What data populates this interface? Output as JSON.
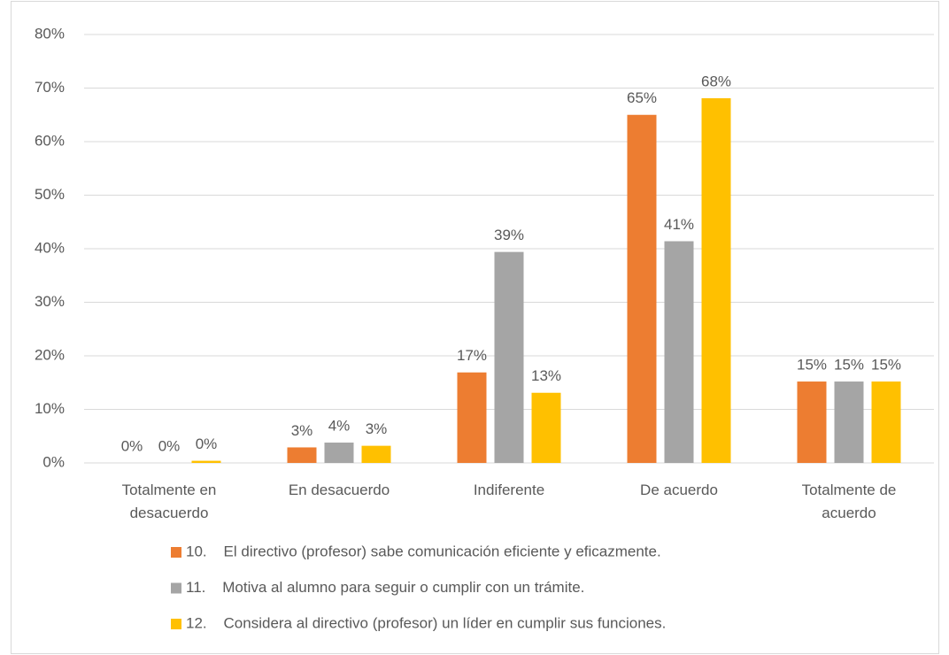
{
  "chart_data": {
    "type": "bar",
    "categories": [
      "Totalmente en desacuerdo",
      "En desacuerdo",
      "Indiferente",
      "De acuerdo",
      "Totalmente de acuerdo"
    ],
    "series": [
      {
        "name": "10.    El directivo (profesor) sabe comunicación eficiente y eficazmente.",
        "color": "#ed7d31",
        "values": [
          0,
          2.9,
          16.9,
          65,
          15.2
        ],
        "value_labels": [
          "0%",
          "3%",
          "17%",
          "65%",
          "15%"
        ]
      },
      {
        "name": "11.    Motiva al alumno para seguir o cumplir con un trámite.",
        "color": "#a5a5a5",
        "values": [
          0,
          3.8,
          39.4,
          41.4,
          15.2
        ],
        "value_labels": [
          "0%",
          "4%",
          "39%",
          "41%",
          "15%"
        ]
      },
      {
        "name": "12.    Considera al directivo (profesor) un líder en cumplir sus funciones.",
        "color": "#ffc000",
        "values": [
          0.4,
          3.2,
          13.1,
          68.1,
          15.2
        ],
        "value_labels": [
          "0%",
          "3%",
          "13%",
          "68%",
          "15%"
        ]
      }
    ],
    "ylim": [
      0,
      80
    ],
    "yticks": [
      {
        "value": 0,
        "label": "0%"
      },
      {
        "value": 10,
        "label": "10%"
      },
      {
        "value": 20,
        "label": "20%"
      },
      {
        "value": 30,
        "label": "30%"
      },
      {
        "value": 40,
        "label": "40%"
      },
      {
        "value": 50,
        "label": "50%"
      },
      {
        "value": 60,
        "label": "60%"
      },
      {
        "value": 70,
        "label": "70%"
      },
      {
        "value": 80,
        "label": "80%"
      }
    ],
    "grid": true,
    "legend": "bottom"
  }
}
